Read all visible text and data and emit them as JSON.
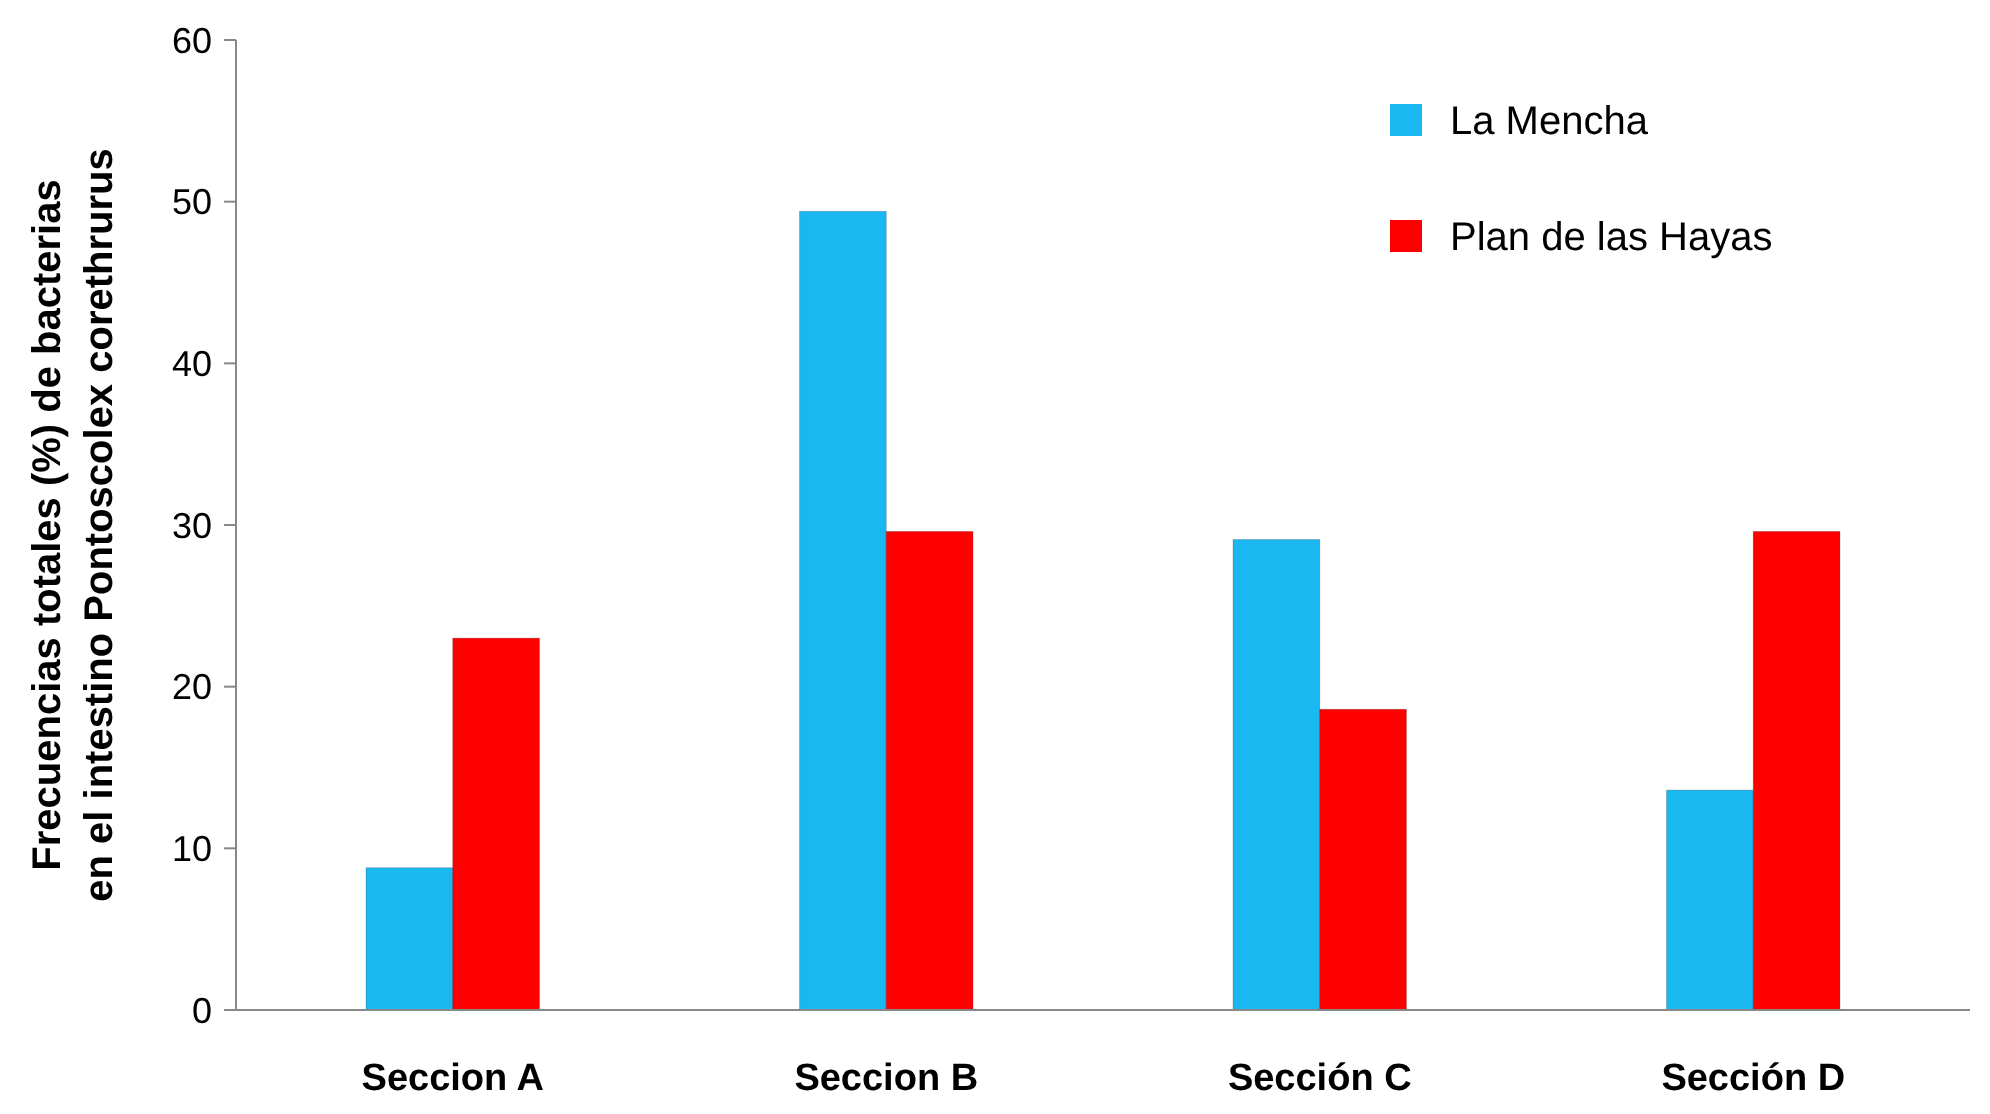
{
  "chart_data": {
    "type": "bar",
    "ylabel": "Frecuencias  totales (%)  de bacterias\nen el intestino Pontoscolex corethrurus",
    "categories": [
      "Seccion A",
      "Seccion B",
      "Sección C",
      "Sección D"
    ],
    "series": [
      {
        "name": "La Mencha",
        "color": "#1ab8f0",
        "values": [
          8.8,
          49.4,
          29.1,
          13.6
        ]
      },
      {
        "name": "Plan de las Hayas",
        "color": "#ff0000",
        "values": [
          23.0,
          29.6,
          18.6,
          29.6
        ]
      }
    ],
    "ylim": [
      0,
      60
    ],
    "yticks": [
      0,
      10,
      20,
      30,
      40,
      50,
      60
    ],
    "grid": false,
    "legend": "top right"
  }
}
